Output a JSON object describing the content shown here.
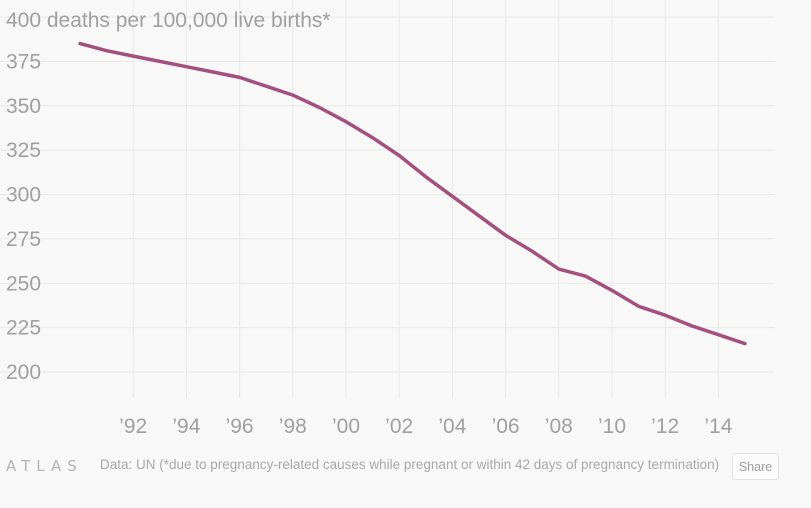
{
  "chart_data": {
    "type": "line",
    "title": "",
    "ylabel_top": "400 deaths per 100,000 live births*",
    "xlabel": "",
    "ylim": [
      200,
      400
    ],
    "xlim": [
      1989,
      2016
    ],
    "y_ticks": [
      200,
      225,
      250,
      275,
      300,
      325,
      350,
      375
    ],
    "x_ticks": [
      1992,
      1994,
      1996,
      1998,
      2000,
      2002,
      2004,
      2006,
      2008,
      2010,
      2012,
      2014
    ],
    "x_tick_labels": [
      "’92",
      "’94",
      "’96",
      "’98",
      "’00",
      "’02",
      "’04",
      "’06",
      "’08",
      "’10",
      "’12",
      "’14"
    ],
    "grid": true,
    "series": [
      {
        "color": "#a3507f",
        "x": [
          1990,
          1991,
          1992,
          1993,
          1994,
          1995,
          1996,
          1997,
          1998,
          1999,
          2000,
          2001,
          2002,
          2003,
          2004,
          2005,
          2006,
          2007,
          2008,
          2009,
          2010,
          2011,
          2012,
          2013,
          2014,
          2015
        ],
        "values": [
          385,
          381,
          378,
          375,
          372,
          369,
          366,
          361,
          356,
          349,
          341,
          332,
          322,
          310,
          299,
          288,
          277,
          268,
          258,
          254,
          246,
          237,
          232,
          226,
          221,
          216
        ]
      }
    ]
  },
  "footer": {
    "logo_text": "ATLAS",
    "source_text": "Data:  UN (*due to pregnancy-related causes while pregnant or within 42 days of pregnancy termination)",
    "share_label": "Share"
  },
  "colors": {
    "background": "#f8f8f8",
    "line": "#a3507f",
    "grid": "#e8e8e8",
    "tick_text": "#a0a0a0"
  }
}
